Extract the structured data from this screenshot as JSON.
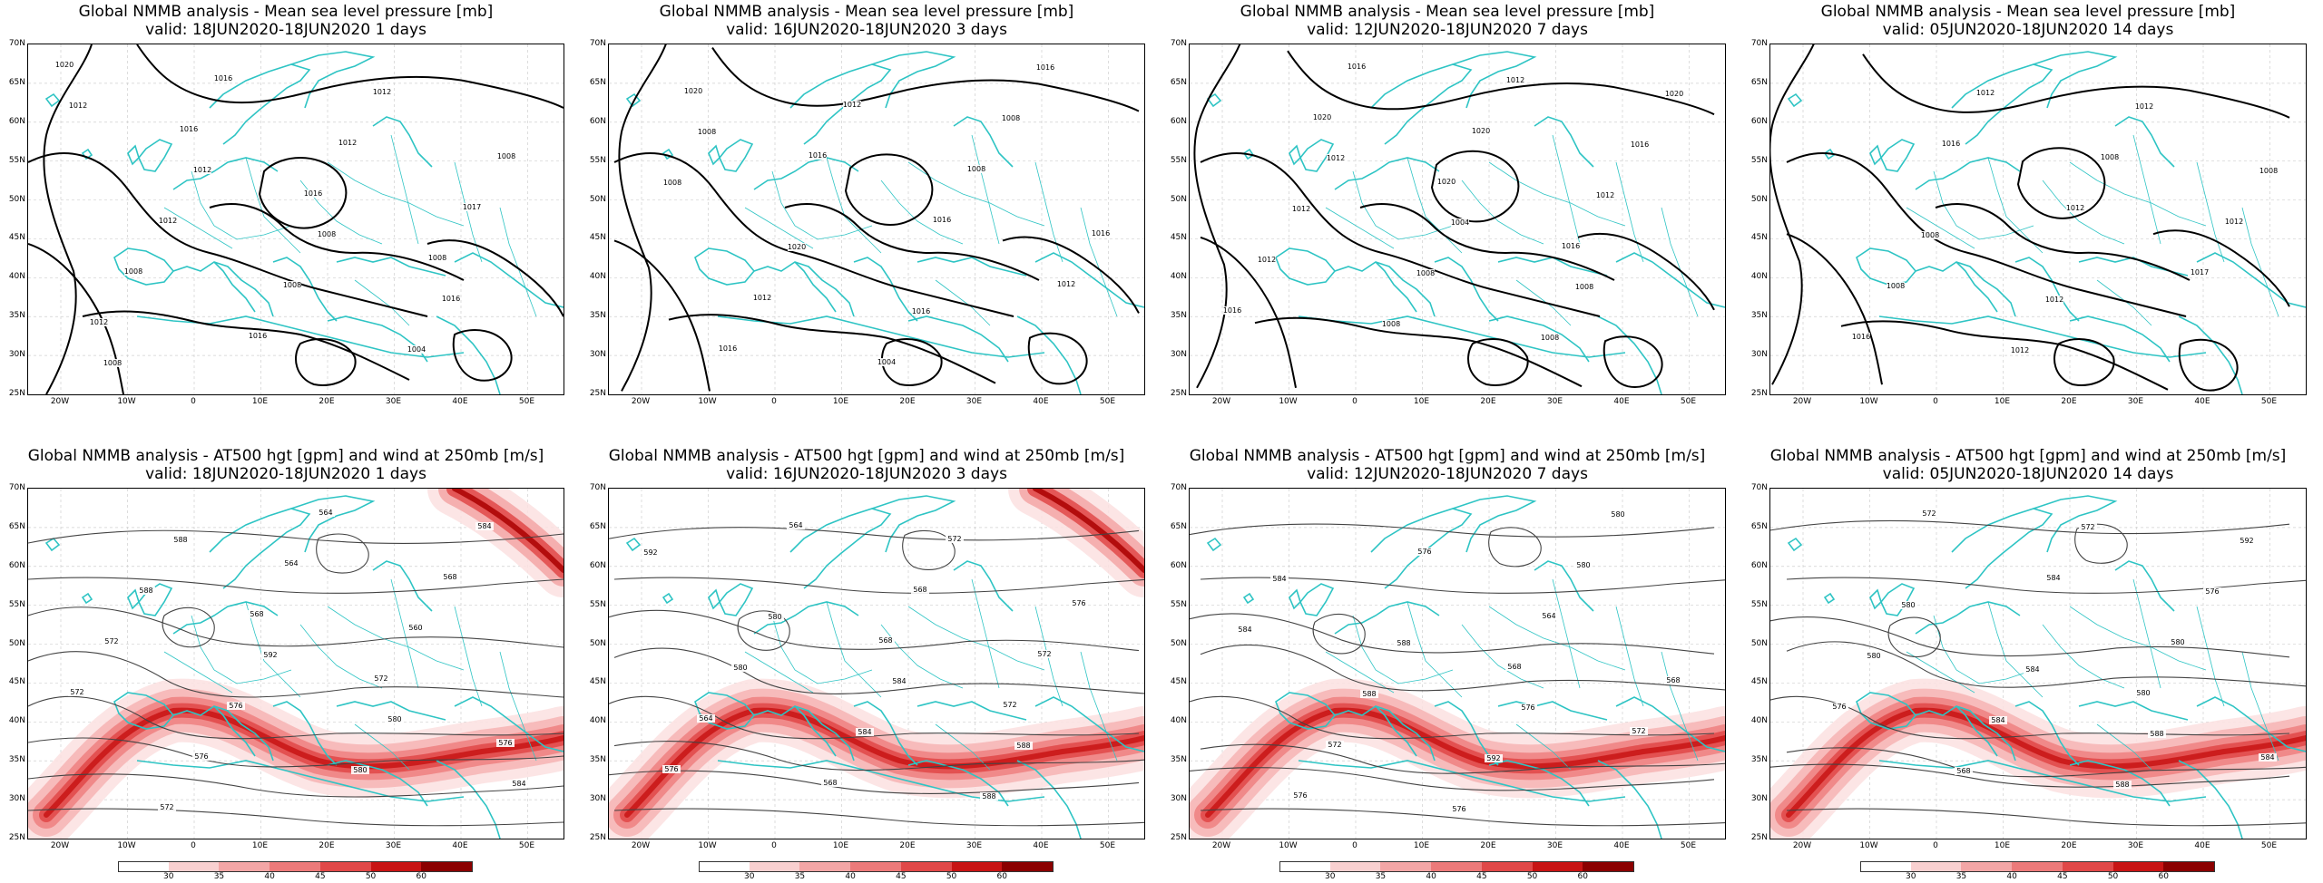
{
  "panels": [
    {
      "title_line1": "Global NMMB analysis - Mean sea level pressure [mb]",
      "title_line2": "valid: 18JUN2020-18JUN2020 1 days",
      "type": "mslp",
      "contour_labels": [
        "1020",
        "1016",
        "1016",
        "1008",
        "1012",
        "1016",
        "1012",
        "1017",
        "1008",
        "1016",
        "1012",
        "1008",
        "1012",
        "1008",
        "1004",
        "1012",
        "1012",
        "1008",
        "1016",
        "1008"
      ]
    },
    {
      "title_line1": "Global NMMB analysis - Mean sea level pressure [mb]",
      "title_line2": "valid: 16JUN2020-18JUN2020 3 days",
      "type": "mslp",
      "contour_labels": [
        "1020",
        "1016",
        "1016",
        "1012",
        "1016",
        "1012",
        "1008",
        "1016",
        "1012",
        "1004",
        "1008",
        "1008",
        "1020",
        "1016",
        "1016",
        "1008"
      ]
    },
    {
      "title_line1": "Global NMMB analysis - Mean sea level pressure [mb]",
      "title_line2": "valid: 12JUN2020-18JUN2020 7 days",
      "type": "mslp",
      "contour_labels": [
        "1020",
        "1020",
        "1016",
        "1016",
        "1016",
        "1020",
        "1012",
        "1012",
        "1008",
        "1012",
        "1016",
        "1012",
        "1008",
        "1008",
        "1020",
        "1012",
        "1004",
        "1008"
      ]
    },
    {
      "title_line1": "Global NMMB analysis - Mean sea level pressure [mb]",
      "title_line2": "valid: 05JUN2020-18JUN2020 14 days",
      "type": "mslp",
      "contour_labels": [
        "1016",
        "1012",
        "1017",
        "1016",
        "1012",
        "1008",
        "1012",
        "1008",
        "1012",
        "1012",
        "1008",
        "1008",
        "1012"
      ]
    },
    {
      "title_line1": "Global NMMB analysis - AT500 hgt [gpm] and wind at 250mb [m/s]",
      "title_line2": "valid: 18JUN2020-18JUN2020 1 days",
      "type": "z500",
      "contour_labels": [
        "568",
        "572",
        "576",
        "572",
        "564",
        "560",
        "572",
        "576",
        "564",
        "568",
        "572",
        "576",
        "580",
        "584",
        "588",
        "592",
        "580",
        "584",
        "588"
      ]
    },
    {
      "title_line1": "Global NMMB analysis - AT500 hgt [gpm] and wind at 250mb [m/s]",
      "title_line2": "valid: 16JUN2020-18JUN2020 3 days",
      "type": "z500",
      "contour_labels": [
        "568",
        "572",
        "576",
        "564",
        "568",
        "572",
        "564",
        "568",
        "572",
        "576",
        "580",
        "584",
        "588",
        "592",
        "580",
        "584",
        "588"
      ]
    },
    {
      "title_line1": "Global NMMB analysis - AT500 hgt [gpm] and wind at 250mb [m/s]",
      "title_line2": "valid: 12JUN2020-18JUN2020 7 days",
      "type": "z500",
      "contour_labels": [
        "568",
        "572",
        "576",
        "576",
        "564",
        "568",
        "572",
        "576",
        "580",
        "584",
        "588",
        "592",
        "580",
        "584",
        "588",
        "576"
      ]
    },
    {
      "title_line1": "Global NMMB analysis - AT500 hgt [gpm] and wind at 250mb [m/s]",
      "title_line2": "valid: 05JUN2020-18JUN2020 14 days",
      "type": "z500",
      "contour_labels": [
        "580",
        "584",
        "572",
        "584",
        "580",
        "576",
        "568",
        "572",
        "576",
        "580",
        "584",
        "588",
        "592",
        "580",
        "584",
        "588"
      ]
    }
  ],
  "lat_labels": [
    "70N",
    "65N",
    "60N",
    "55N",
    "50N",
    "45N",
    "40N",
    "35N",
    "30N",
    "25N"
  ],
  "lon_labels": [
    "20W",
    "10W",
    "0",
    "10E",
    "20E",
    "30E",
    "40E",
    "50E"
  ],
  "colorbar": {
    "labels": [
      "30",
      "35",
      "40",
      "45",
      "50",
      "60"
    ],
    "colors": [
      "#ffffff",
      "#f9d0d0",
      "#f3a6a6",
      "#ec7a7a",
      "#e04848",
      "#c81414",
      "#8b0000"
    ]
  },
  "colors": {
    "coast": "#2ec4c4",
    "mslp_contour": "#000000",
    "z500_contour": "#444444",
    "jet": "#e23a3a"
  }
}
